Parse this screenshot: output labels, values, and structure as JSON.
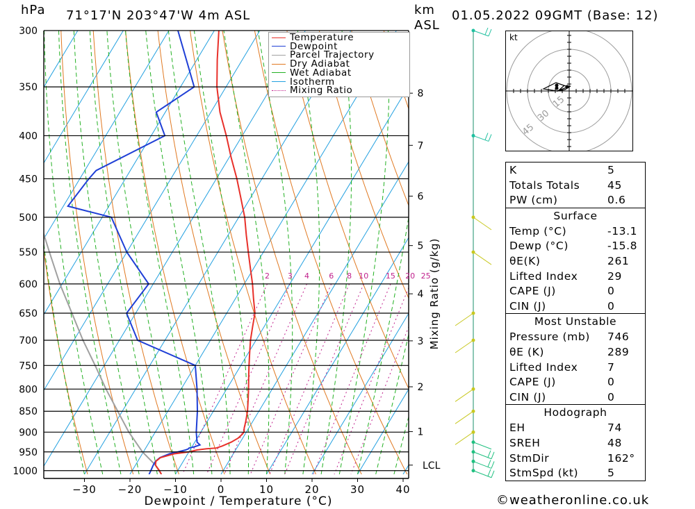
{
  "header": {
    "pressure_unit": "hPa",
    "location": "71°17'N 203°47'W 4m ASL",
    "height_unit_km": "km",
    "height_unit_asl": "ASL",
    "datetime": "01.05.2022 09GMT (Base: 12)"
  },
  "chart_data": {
    "type": "skew-t",
    "xlabel": "Dewpoint / Temperature (°C)",
    "x_ticks": [
      -30,
      -20,
      -10,
      0,
      10,
      20,
      30,
      40
    ],
    "pressure_ticks": [
      300,
      350,
      400,
      450,
      500,
      550,
      600,
      650,
      700,
      750,
      800,
      850,
      900,
      950,
      1000
    ],
    "height_ticks_km": [
      1,
      2,
      3,
      4,
      5,
      6,
      7,
      8
    ],
    "lcl_label": "LCL",
    "mixing_ratio_axis_label": "Mixing Ratio (g/kg)",
    "mixing_ratio_values": [
      2,
      3,
      4,
      6,
      8,
      10,
      15,
      20,
      25
    ],
    "legend": [
      {
        "name": "Temperature",
        "color": "#e8302a"
      },
      {
        "name": "Dewpoint",
        "color": "#1f3fd6"
      },
      {
        "name": "Parcel Trajectory",
        "color": "#a0a0a0"
      },
      {
        "name": "Dry Adiabat",
        "color": "#e07820"
      },
      {
        "name": "Wet Adiabat",
        "color": "#22b022"
      },
      {
        "name": "Isotherm",
        "color": "#22a0e0"
      },
      {
        "name": "Mixing Ratio",
        "color": "#c0208c"
      }
    ],
    "series": [
      {
        "name": "Temperature",
        "p": [
          1010,
          1000,
          985,
          975,
          965,
          955,
          950,
          945,
          942,
          940,
          935,
          925,
          915,
          905,
          900,
          890,
          875,
          850,
          825,
          800,
          775,
          750,
          725,
          700,
          675,
          650,
          625,
          600,
          575,
          550,
          525,
          500,
          475,
          450,
          425,
          400,
          375,
          350,
          325,
          300
        ],
        "t": [
          -13.1,
          -14,
          -15.6,
          -16.0,
          -15.5,
          -13,
          -10,
          -8.5,
          -6.5,
          -4.5,
          -3.5,
          -2.0,
          -1.0,
          -0.6,
          -0.5,
          -1.0,
          -1.5,
          -2.5,
          -3.8,
          -5.2,
          -6.7,
          -8.2,
          -9.7,
          -11.2,
          -12.5,
          -13.8,
          -16.0,
          -18.2,
          -20.7,
          -23.3,
          -26.0,
          -28.7,
          -32.0,
          -35.5,
          -39.5,
          -43.5,
          -48.0,
          -52.0,
          -55.5,
          -59.0
        ]
      },
      {
        "name": "Dewpoint",
        "p": [
          1010,
          1000,
          985,
          975,
          965,
          955,
          950,
          945,
          942,
          940,
          937,
          932,
          925,
          900,
          850,
          800,
          750,
          700,
          650,
          600,
          550,
          500,
          485,
          450,
          440,
          400,
          375,
          350,
          300
        ],
        "t": [
          -15.8,
          -15.9,
          -16.1,
          -16.1,
          -15.6,
          -14.0,
          -12.5,
          -11.0,
          -10.5,
          -10.5,
          -9.5,
          -8.5,
          -9.5,
          -11.0,
          -13.5,
          -16.5,
          -20.0,
          -36.0,
          -42.0,
          -41.0,
          -50.0,
          -58.0,
          -69.0,
          -68.0,
          -67.5,
          -57.0,
          -62.0,
          -57.0,
          -68.0
        ]
      },
      {
        "name": "Parcel Trajectory",
        "p": [
          1010,
          1000,
          985,
          950,
          900,
          850,
          800,
          750,
          700,
          650,
          600,
          550,
          500,
          450,
          440
        ],
        "t": [
          -13.1,
          -14.1,
          -15.6,
          -20.2,
          -25.8,
          -31.0,
          -36.5,
          -42.0,
          -48.0,
          -54.0,
          -60.5,
          -67.0,
          -74.0,
          -81.5,
          -83.0
        ]
      }
    ],
    "wind_barbs_pressures": [
      300,
      400,
      500,
      550,
      650,
      700,
      800,
      850,
      900,
      925,
      950,
      975,
      1000
    ]
  },
  "hodograph": {
    "unit": "kt",
    "ring_labels": [
      "15",
      "30",
      "45"
    ]
  },
  "indices": {
    "rows": [
      {
        "label": "K",
        "value": "5"
      },
      {
        "label": "Totals Totals",
        "value": "45"
      },
      {
        "label": "PW (cm)",
        "value": "0.6"
      }
    ]
  },
  "surface": {
    "title": "Surface",
    "rows": [
      {
        "label": "Temp (°C)",
        "value": "-13.1"
      },
      {
        "label": "Dewp (°C)",
        "value": "-15.8"
      },
      {
        "label": "θE(K)",
        "value": "261"
      },
      {
        "label": "Lifted Index",
        "value": "29"
      },
      {
        "label": "CAPE (J)",
        "value": "0"
      },
      {
        "label": "CIN (J)",
        "value": "0"
      }
    ]
  },
  "most_unstable": {
    "title": "Most Unstable",
    "rows": [
      {
        "label": "Pressure (mb)",
        "value": "746"
      },
      {
        "label": "θE (K)",
        "value": "289"
      },
      {
        "label": "Lifted Index",
        "value": "7"
      },
      {
        "label": "CAPE (J)",
        "value": "0"
      },
      {
        "label": "CIN (J)",
        "value": "0"
      }
    ]
  },
  "hodograph_stats": {
    "title": "Hodograph",
    "rows": [
      {
        "label": "EH",
        "value": "74"
      },
      {
        "label": "SREH",
        "value": "48"
      },
      {
        "label": "StmDir",
        "value": "162°"
      },
      {
        "label": "StmSpd (kt)",
        "value": "5"
      }
    ]
  },
  "footer": {
    "copyright_symbol": "©",
    "site": "weatheronline.co.uk"
  }
}
